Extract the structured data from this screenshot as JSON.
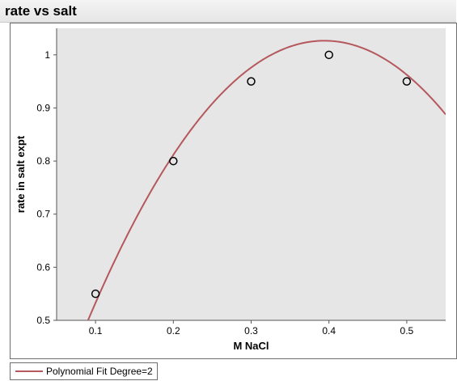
{
  "window": {
    "title": "rate vs salt"
  },
  "legend": {
    "label": "Polynomial Fit Degree=2",
    "color": "#b5585d"
  },
  "colors": {
    "plot_background": "#e6e6e6",
    "fit_line": "#b5585d",
    "marker_stroke": "#000000"
  },
  "chart_data": {
    "type": "scatter",
    "title": "rate vs salt",
    "xlabel": "M NaCl",
    "ylabel": "rate in salt expt",
    "xlim": [
      0.05,
      0.55
    ],
    "ylim": [
      0.5,
      1.05
    ],
    "x_ticks": [
      0.1,
      0.2,
      0.3,
      0.4,
      0.5
    ],
    "y_ticks": [
      0.5,
      0.6,
      0.7,
      0.8,
      0.9,
      1
    ],
    "grid": false,
    "x": [
      0.1,
      0.2,
      0.3,
      0.4,
      0.5
    ],
    "y": [
      0.55,
      0.8,
      0.95,
      1.0,
      0.95
    ],
    "fit": {
      "name": "Polynomial Fit Degree=2",
      "degree": 2,
      "coefficients": [
        0.14,
        4.5,
        -5.71
      ]
    },
    "legend_position": "bottom-left"
  }
}
